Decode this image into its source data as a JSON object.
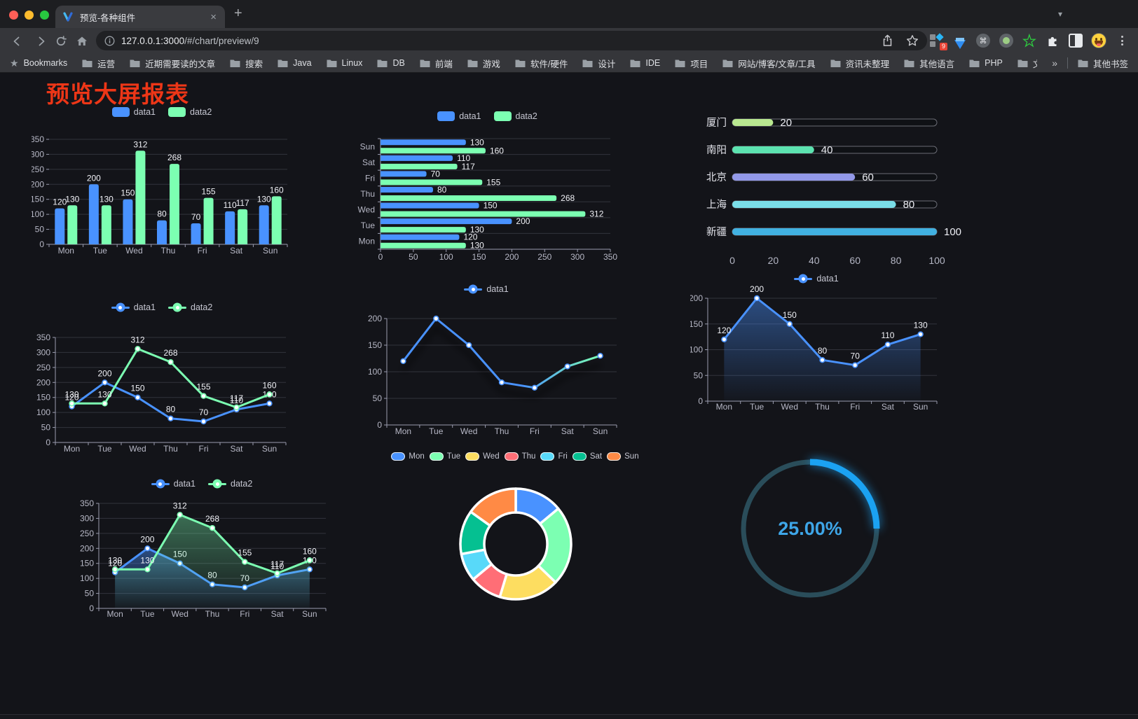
{
  "browser": {
    "tab_title": "预览-各种组件",
    "tab_close": "×",
    "new_tab": "+",
    "url_host": "127.0.0.1:3000",
    "url_path": "/#/chart/preview/9",
    "bookmarks_label": "Bookmarks",
    "bookmark_folders": [
      "运营",
      "近期需要读的文章",
      "搜索",
      "Java",
      "Linux",
      "DB",
      "前端",
      "游戏",
      "软件/硬件",
      "设计",
      "IDE",
      "项目",
      "网站/博客/文章/工具",
      "资讯未整理",
      "其他语言",
      "PHP",
      "文件服务器"
    ],
    "bookmarks_overflow": "»",
    "other_bookmarks": "其他书签",
    "extension_badge": "9",
    "traffic_lights": [
      "#ff5f57",
      "#febc2e",
      "#28c840"
    ]
  },
  "page": {
    "title": "预览大屏报表",
    "title_color": "#ed3617",
    "background": "#131419"
  },
  "chart_data": [
    {
      "id": "c1",
      "type": "bar",
      "legend_pos": "top",
      "categories": [
        "Mon",
        "Tue",
        "Wed",
        "Thu",
        "Fri",
        "Sat",
        "Sun"
      ],
      "series": [
        {
          "name": "data1",
          "color": "#4992ff",
          "values": [
            120,
            200,
            150,
            80,
            70,
            110,
            130
          ]
        },
        {
          "name": "data2",
          "color": "#7cffb2",
          "values": [
            130,
            130,
            312,
            268,
            155,
            117,
            160
          ]
        }
      ],
      "ylim": [
        0,
        350
      ],
      "ystep": 50,
      "grid": true,
      "value_labels": true
    },
    {
      "id": "c2",
      "type": "bar",
      "orientation": "horizontal",
      "legend_pos": "top",
      "categories": [
        "Mon",
        "Tue",
        "Wed",
        "Thu",
        "Fri",
        "Sat",
        "Sun"
      ],
      "category_order": "Mon at bottom, Sun at top",
      "series": [
        {
          "name": "data1",
          "color": "#4992ff",
          "values": [
            120,
            200,
            150,
            80,
            70,
            110,
            130
          ]
        },
        {
          "name": "data2",
          "color": "#7cffb2",
          "values": [
            130,
            130,
            312,
            268,
            155,
            117,
            160
          ]
        }
      ],
      "xlim": [
        0,
        350
      ],
      "xstep": 50,
      "grid": true,
      "value_labels": true
    },
    {
      "id": "c3",
      "type": "bar",
      "subtype": "progress",
      "categories": [
        "厦门",
        "南阳",
        "北京",
        "上海",
        "新疆"
      ],
      "values": [
        20,
        40,
        60,
        80,
        100
      ],
      "colors": [
        "#b9e890",
        "#5ce3b0",
        "#9298e8",
        "#7adee8",
        "#41b1e1"
      ],
      "xlim": [
        0,
        100
      ],
      "xticks": [
        0,
        20,
        40,
        60,
        80,
        100
      ],
      "value_labels": true
    },
    {
      "id": "c4",
      "type": "line",
      "legend_pos": "top",
      "categories": [
        "Mon",
        "Tue",
        "Wed",
        "Thu",
        "Fri",
        "Sat",
        "Sun"
      ],
      "series": [
        {
          "name": "data1",
          "color": "#4992ff",
          "values": [
            120,
            200,
            150,
            80,
            70,
            110,
            130
          ]
        },
        {
          "name": "data2",
          "color": "#7cffb2",
          "values": [
            130,
            130,
            312,
            268,
            155,
            117,
            160
          ]
        }
      ],
      "ylim": [
        0,
        350
      ],
      "ystep": 50,
      "grid": true,
      "value_labels": true
    },
    {
      "id": "c5",
      "type": "line",
      "legend_pos": "top",
      "categories": [
        "Mon",
        "Tue",
        "Wed",
        "Thu",
        "Fri",
        "Sat",
        "Sun"
      ],
      "series": [
        {
          "name": "data1",
          "color": "#4992ff",
          "gradient": [
            "#4992ff",
            "#7cffb2"
          ],
          "shadow": true,
          "values": [
            120,
            200,
            150,
            80,
            70,
            110,
            130
          ]
        }
      ],
      "ylim": [
        0,
        200
      ],
      "ystep": 50,
      "grid": true,
      "value_labels": false
    },
    {
      "id": "c6",
      "type": "area",
      "legend_pos": "top",
      "categories": [
        "Mon",
        "Tue",
        "Wed",
        "Thu",
        "Fri",
        "Sat",
        "Sun"
      ],
      "series": [
        {
          "name": "data1",
          "color": "#4992ff",
          "area": true,
          "values": [
            120,
            200,
            150,
            80,
            70,
            110,
            130
          ]
        }
      ],
      "ylim": [
        0,
        200
      ],
      "ystep": 50,
      "grid": true,
      "value_labels": true
    },
    {
      "id": "c7",
      "type": "area",
      "legend_pos": "top",
      "categories": [
        "Mon",
        "Tue",
        "Wed",
        "Thu",
        "Fri",
        "Sat",
        "Sun"
      ],
      "series": [
        {
          "name": "data1",
          "color": "#4992ff",
          "area": true,
          "values": [
            120,
            200,
            150,
            80,
            70,
            110,
            130
          ]
        },
        {
          "name": "data2",
          "color": "#7cffb2",
          "area": true,
          "values": [
            130,
            130,
            312,
            268,
            155,
            117,
            160
          ]
        }
      ],
      "ylim": [
        0,
        350
      ],
      "ystep": 50,
      "grid": true,
      "value_labels": true
    },
    {
      "id": "c8",
      "type": "pie",
      "subtype": "donut",
      "legend_pos": "top",
      "categories": [
        "Mon",
        "Tue",
        "Wed",
        "Thu",
        "Fri",
        "Sat",
        "Sun"
      ],
      "values": [
        120,
        200,
        150,
        80,
        70,
        110,
        130
      ],
      "colors": [
        "#4992ff",
        "#7cffb2",
        "#fddd60",
        "#ff6e76",
        "#58d9f9",
        "#05c091",
        "#ff8a45"
      ],
      "border_color": "#ffffff",
      "start_angle": "top, clockwise"
    },
    {
      "id": "c9",
      "type": "gauge",
      "subtype": "ring-progress",
      "value": 25,
      "label": "25.00%",
      "color": "#1ba2f2",
      "track_color": "#2a4d5a",
      "text_color": "#3ea6e8"
    }
  ]
}
